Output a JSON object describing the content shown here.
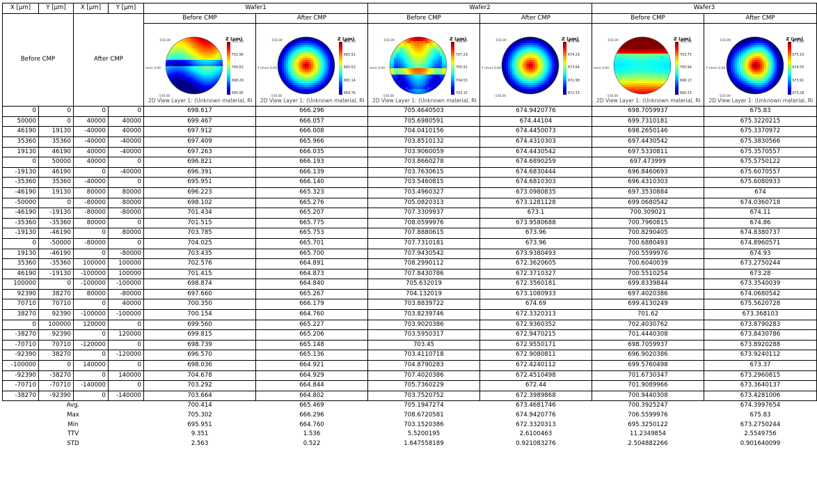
{
  "headers": {
    "coords": [
      "X [μm]",
      "Y [μm]",
      "X [μm]",
      "Y [μm]"
    ],
    "before_group": "Before CMP",
    "after_group": "After CMP",
    "wafers": [
      "Wafer1",
      "Wafer2",
      "Wafer3"
    ],
    "sub": [
      "Before CMP",
      "After CMP",
      "Before CMP",
      "After CMP",
      "Before CMP",
      "After CMP"
    ]
  },
  "maps": [
    {
      "title": "Z (μm)",
      "ticks": [
        "705.30",
        "702.96",
        "700.63",
        "698.29",
        "695.95"
      ],
      "caption": "2D View Layer 1: (Unknown material, RI",
      "axis_top": "150.00",
      "axis_left": "mm)  0.00",
      "axis_bottom": "-150.00",
      "pattern": "w1b"
    },
    {
      "title": "Z (μm)",
      "ticks": [
        "666.30",
        "665.91",
        "665.53",
        "665.14",
        "664.76"
      ],
      "caption": "2D View Layer 1: (Unknown material, RI",
      "axis_top": "150.00",
      "axis_left": "Y (mm)  0.00",
      "axis_bottom": "-150.00",
      "pattern": "w1a"
    },
    {
      "title": "Z (μm)",
      "ticks": [
        "708.67",
        "707.29",
        "705.91",
        "704.53",
        "703.15"
      ],
      "caption": "2D View Layer 1: (Unknown material, RI",
      "axis_top": "150.00",
      "axis_left": "mm)  0.00",
      "axis_bottom": "-150.00",
      "pattern": "w2b"
    },
    {
      "title": "Z (μm)",
      "ticks": [
        "674.94",
        "674.29",
        "673.64",
        "672.98",
        "672.33"
      ],
      "caption": "",
      "axis_top": "150.00",
      "axis_left": "Y (mm)  0.00",
      "axis_bottom": "-150.00",
      "pattern": "w2a"
    },
    {
      "title": "Z (μm)",
      "ticks": [
        "706.56",
        "703.75",
        "700.94",
        "698.13",
        "695.33"
      ],
      "caption": "2D View Layer 1: (Unknown material, RI",
      "axis_top": "150.00",
      "axis_left": "mm)  0.00",
      "axis_bottom": "-150.00",
      "pattern": "w3b"
    },
    {
      "title": "Z (μm)",
      "ticks": [
        "675.83",
        "675.19",
        "674.55",
        "673.91",
        "673.28"
      ],
      "caption": "2D View Layer 1: (Unknown material, RI",
      "axis_top": "150.00",
      "axis_left": "Y (mm)  0.00",
      "axis_bottom": "-150.00",
      "pattern": "w3a"
    }
  ],
  "rows": [
    [
      "0",
      "0",
      "0",
      "0",
      "698.617",
      "666.296",
      "705.4640503",
      "674.9420776",
      "698.7059937",
      "675.83"
    ],
    [
      "50000",
      "0",
      "40000",
      "40000",
      "699.467",
      "666.057",
      "705.6980591",
      "674.44104",
      "699.7310181",
      "675.3220215"
    ],
    [
      "46190",
      "19130",
      "-40000",
      "40000",
      "697.912",
      "666.008",
      "704.0410156",
      "674.4450073",
      "698.2650146",
      "675.3370972"
    ],
    [
      "35360",
      "35360",
      "-40000",
      "-40000",
      "697.409",
      "665.966",
      "703.8510132",
      "674.4310303",
      "697.4430542",
      "675.3830566"
    ],
    [
      "19130",
      "46190",
      "40000",
      "-40000",
      "697.263",
      "666.035",
      "703.9060059",
      "674.4430542",
      "697.5330811",
      "675.3570557"
    ],
    [
      "0",
      "50000",
      "40000",
      "0",
      "696.821",
      "666.193",
      "703.8660278",
      "674.6890259",
      "697.473999",
      "675.5750122"
    ],
    [
      "-19130",
      "46190",
      "0",
      "-40000",
      "696.391",
      "666.139",
      "703.7630615",
      "674.6830444",
      "696.8460693",
      "675.6070557"
    ],
    [
      "-35360",
      "35360",
      "-40000",
      "0",
      "695.951",
      "666.140",
      "703.5460815",
      "674.6810303",
      "696.4310303",
      "675.6080933"
    ],
    [
      "-46190",
      "19130",
      "80000",
      "80000",
      "696.223",
      "665.323",
      "703.4960327",
      "673.0980835",
      "697.3530884",
      "674"
    ],
    [
      "-50000",
      "0",
      "-80000",
      "80000",
      "698.102",
      "665.276",
      "705.0820313",
      "673.1281128",
      "699.0680542",
      "674.0360718"
    ],
    [
      "-46190",
      "-19130",
      "-80000",
      "-80000",
      "701.434",
      "665.207",
      "707.3309937",
      "673.1",
      "700.309021",
      "674.11"
    ],
    [
      "-35360",
      "-35360",
      "80000",
      "0",
      "701.515",
      "665.775",
      "708.0599976",
      "673.9580688",
      "700.7960815",
      "674.86"
    ],
    [
      "-19130",
      "-46190",
      "0",
      "80000",
      "703.785",
      "665.753",
      "707.8880615",
      "673.96",
      "700.8290405",
      "674.8380737"
    ],
    [
      "0",
      "-50000",
      "-80000",
      "0",
      "704.025",
      "665.701",
      "707.7310181",
      "673.96",
      "700.6880493",
      "674.8960571"
    ],
    [
      "19130",
      "-46190",
      "0",
      "-80000",
      "703.435",
      "665.700",
      "707.9430542",
      "673.9380493",
      "700.5599976",
      "674.93"
    ],
    [
      "35360",
      "-35360",
      "100000",
      "100000",
      "702.576",
      "664.891",
      "708.2990112",
      "672.3620605",
      "700.6040039",
      "673.2750244"
    ],
    [
      "46190",
      "-19130",
      "-100000",
      "100000",
      "701.415",
      "664.873",
      "707.8430786",
      "672.3710327",
      "700.5510254",
      "673.28"
    ],
    [
      "100000",
      "0",
      "-100000",
      "-100000",
      "698.874",
      "664.840",
      "705.632019",
      "672.3560181",
      "699.8339844",
      "673.3540039"
    ],
    [
      "92390",
      "38270",
      "80000",
      "-80000",
      "697.660",
      "665.267",
      "704.132019",
      "673.1080933",
      "697.4020386",
      "674.0680542"
    ],
    [
      "70710",
      "70710",
      "0",
      "40000",
      "700.350",
      "666.179",
      "703.8839722",
      "674.69",
      "699.4130249",
      "675.5620728"
    ],
    [
      "38270",
      "92390",
      "-100000",
      "-100000",
      "700.154",
      "664.760",
      "703.8239746",
      "672.3320313",
      "701.62",
      "673.368103"
    ],
    [
      "0",
      "100000",
      "120000",
      "0",
      "699.560",
      "665.227",
      "703.9020386",
      "672.9360352",
      "702.4030762",
      "673.8790283"
    ],
    [
      "-38270",
      "92390",
      "0",
      "120000",
      "699.815",
      "665.206",
      "703.5950317",
      "672.9470215",
      "701.4440308",
      "673.8430786"
    ],
    [
      "-70710",
      "70710",
      "-120000",
      "0",
      "698.739",
      "665.148",
      "703.45",
      "672.9550171",
      "698.7059937",
      "673.8920288"
    ],
    [
      "-92390",
      "38270",
      "0",
      "-120000",
      "696.570",
      "665.136",
      "703.4110718",
      "672.9080811",
      "696.9020386",
      "673.9240112"
    ],
    [
      "-100000",
      "0",
      "140000",
      "0",
      "698.036",
      "664.921",
      "704.8790283",
      "672.4240112",
      "699.5760498",
      "673.37"
    ],
    [
      "-92390",
      "-38270",
      "0",
      "140000",
      "704.678",
      "664.929",
      "707.4020386",
      "672.4510498",
      "701.6730347",
      "673.2960815"
    ],
    [
      "-70710",
      "-70710",
      "-140000",
      "0",
      "703.292",
      "664.844",
      "705.7360229",
      "672.44",
      "701.9089966",
      "673.3640137"
    ],
    [
      "-38270",
      "-92390",
      "0",
      "-140000",
      "703.664",
      "664.802",
      "703.7520752",
      "672.3989868",
      "700.9440308",
      "673.4281006"
    ]
  ],
  "stats": [
    {
      "label": "Avg.",
      "values": [
        "700.414",
        "665.469",
        "705.1947274",
        "673.4681746",
        "700.3925247",
        "674.3997654"
      ]
    },
    {
      "label": "Max",
      "values": [
        "705.302",
        "666.296",
        "708.6720581",
        "674.9420776",
        "706.5599976",
        "675.83"
      ]
    },
    {
      "label": "Min",
      "values": [
        "695.951",
        "664.760",
        "703.1520386",
        "672.3320313",
        "695.3250122",
        "673.2750244"
      ]
    },
    {
      "label": "TTV",
      "values": [
        "9.351",
        "1.536",
        "5.5200195",
        "2.6100463",
        "11.2349854",
        "2.5549756"
      ]
    },
    {
      "label": "STD",
      "values": [
        "2.563",
        "0.522",
        "1.647558189",
        "0.921083276",
        "2.504882266",
        "0.901640099"
      ]
    }
  ]
}
